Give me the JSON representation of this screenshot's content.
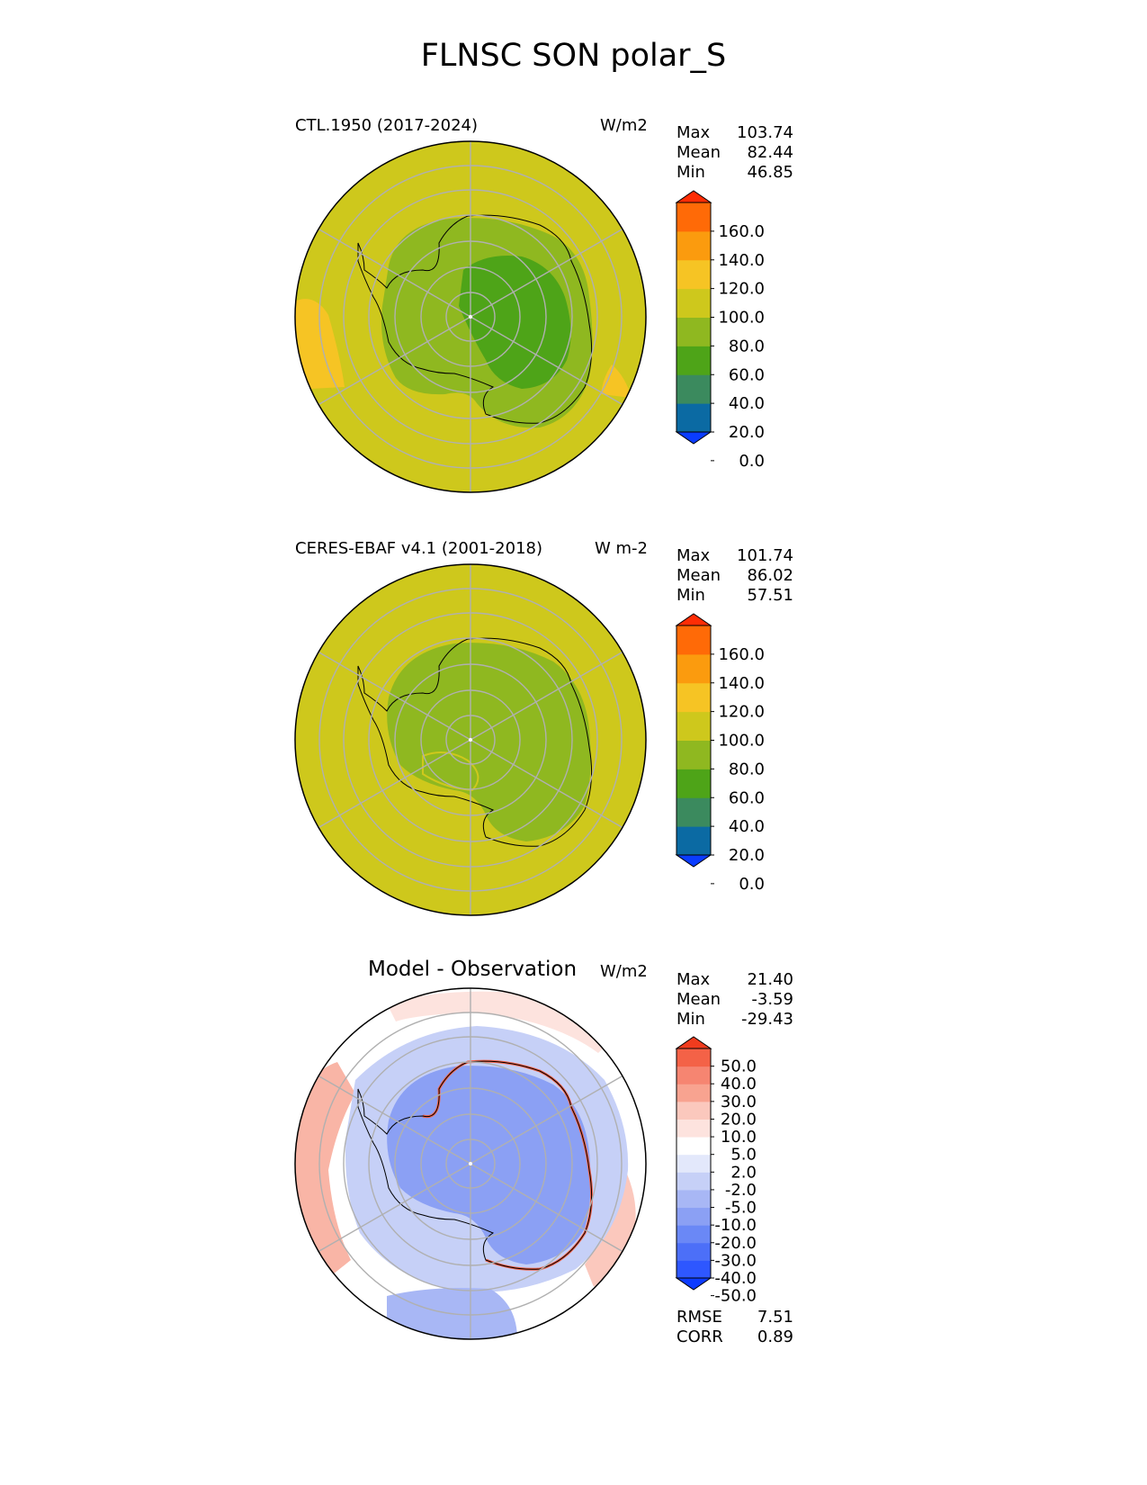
{
  "figure": {
    "title": "FLNSC SON polar_S"
  },
  "panels": [
    {
      "name": "model",
      "left_label": "CTL.1950 (2017-2024)",
      "units": "W/m2",
      "stats": [
        {
          "label": "Max",
          "value": "103.74"
        },
        {
          "label": "Mean",
          "value": "82.44"
        },
        {
          "label": "Min",
          "value": "46.85"
        }
      ]
    },
    {
      "name": "observation",
      "left_label": "CERES-EBAF v4.1 (2001-2018)",
      "units": "W m-2",
      "stats": [
        {
          "label": "Max",
          "value": "101.74"
        },
        {
          "label": "Mean",
          "value": "86.02"
        },
        {
          "label": "Min",
          "value": "57.51"
        }
      ]
    },
    {
      "name": "difference",
      "center_label": "Model - Observation",
      "units": "W/m2",
      "stats": [
        {
          "label": "Max",
          "value": "21.40"
        },
        {
          "label": "Mean",
          "value": "-3.59"
        },
        {
          "label": "Min",
          "value": "-29.43"
        }
      ],
      "metrics": [
        {
          "label": "RMSE",
          "value": "7.51"
        },
        {
          "label": "CORR",
          "value": "0.89"
        }
      ]
    }
  ],
  "chart_data": [
    {
      "type": "heatmap",
      "title": "CTL.1950 (2017-2024)",
      "projection": "south polar stereographic",
      "units": "W/m2",
      "stats": {
        "max": 103.74,
        "mean": 82.44,
        "min": 46.85
      },
      "colorbar": {
        "levels": [
          0,
          20,
          40,
          60,
          80,
          100,
          120,
          140,
          160
        ],
        "tick_labels": [
          "160.0",
          "140.0",
          "120.0",
          "100.0",
          "80.0",
          "60.0",
          "40.0",
          "20.0",
          "0.0"
        ],
        "colors": [
          "#0a3cff",
          "#0b6aa3",
          "#3b8a5e",
          "#4ea418",
          "#8fb820",
          "#cec81c",
          "#f6c424",
          "#fb9b0e",
          "#ff6a07",
          "#ff2d05"
        ],
        "extend": "both"
      },
      "features": {
        "antarctic_interior_value_range": [
          40,
          80
        ],
        "southern_ocean_value_range": [
          80,
          100
        ],
        "local_maxima_value_range": [
          100,
          120
        ]
      }
    },
    {
      "type": "heatmap",
      "title": "CERES-EBAF v4.1 (2001-2018)",
      "projection": "south polar stereographic",
      "units": "W m-2",
      "stats": {
        "max": 101.74,
        "mean": 86.02,
        "min": 57.51
      },
      "colorbar": {
        "levels": [
          0,
          20,
          40,
          60,
          80,
          100,
          120,
          140,
          160
        ],
        "tick_labels": [
          "160.0",
          "140.0",
          "120.0",
          "100.0",
          "80.0",
          "60.0",
          "40.0",
          "20.0",
          "0.0"
        ],
        "colors": [
          "#0a3cff",
          "#0b6aa3",
          "#3b8a5e",
          "#4ea418",
          "#8fb820",
          "#cec81c",
          "#f6c424",
          "#fb9b0e",
          "#ff6a07",
          "#ff2d05"
        ],
        "extend": "both"
      },
      "features": {
        "antarctic_interior_value_range": [
          60,
          100
        ],
        "southern_ocean_value_range": [
          80,
          100
        ]
      }
    },
    {
      "type": "heatmap",
      "title": "Model - Observation",
      "projection": "south polar stereographic",
      "units": "W/m2",
      "stats": {
        "max": 21.4,
        "mean": -3.59,
        "min": -29.43
      },
      "metrics": {
        "rmse": 7.51,
        "corr": 0.89
      },
      "colorbar": {
        "levels": [
          -50,
          -40,
          -30,
          -20,
          -10,
          -5,
          -2,
          2,
          5,
          10,
          20,
          30,
          40,
          50
        ],
        "tick_labels": [
          "50.0",
          "40.0",
          "30.0",
          "20.0",
          "10.0",
          "5.0",
          "2.0",
          "-2.0",
          "-5.0",
          "-10.0",
          "-20.0",
          "-30.0",
          "-40.0",
          "-50.0"
        ],
        "colors": [
          "#0c3bff",
          "#2e57ff",
          "#4c6ff8",
          "#6a88f6",
          "#8ba0f4",
          "#a8b7f5",
          "#c6d0f7",
          "#e3e8fb",
          "#ffffff",
          "#fde3de",
          "#fbc8bd",
          "#f8a390",
          "#f68571",
          "#f46247",
          "#f03c1e"
        ],
        "extend": "both"
      },
      "features": {
        "antarctic_interior_sign": "negative",
        "coastal_ring_sign": "positive",
        "ocean_sign": "mixed, positive at mid-latitudes"
      }
    }
  ]
}
